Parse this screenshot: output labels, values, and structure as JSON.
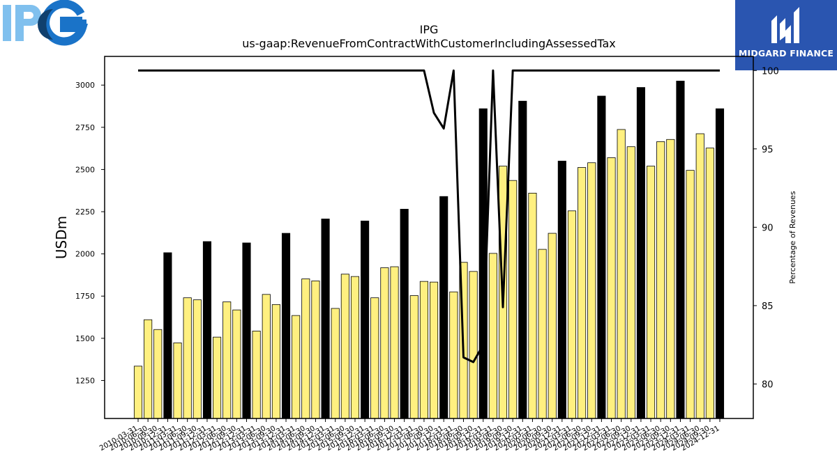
{
  "logos": {
    "left_text": "IPG",
    "right_text": "MIDGARD FINANCE"
  },
  "colors": {
    "bar_regular": "#fff080",
    "bar_highlight": "#000000",
    "line": "#000000",
    "left_logo_light": "#80c0ee",
    "left_logo_dark": "#1a73c8",
    "right_logo_bg": "#2a55b0"
  },
  "chart_data": {
    "type": "bar",
    "title": "IPG",
    "subtitle": "us-gaap:RevenueFromContractWithCustomerIncludingAssessedTax",
    "ylabel": "USDm",
    "y2label": "Percentage of Revenues",
    "ylim": [
      1025,
      3170
    ],
    "y2lim": [
      77.8,
      100.9
    ],
    "yticks": [
      1250,
      1500,
      1750,
      2000,
      2250,
      2500,
      2750,
      3000
    ],
    "y2ticks": [
      80,
      85,
      90,
      95,
      100
    ],
    "categories": [
      "2010-03-31",
      "2010-06-30",
      "2010-09-30",
      "2010-12-31",
      "2011-03-31",
      "2011-06-30",
      "2011-09-30",
      "2011-12-31",
      "2012-03-31",
      "2012-06-30",
      "2012-09-30",
      "2012-12-31",
      "2013-03-31",
      "2013-06-30",
      "2013-09-30",
      "2013-12-31",
      "2014-03-31",
      "2014-06-30",
      "2014-09-30",
      "2014-12-31",
      "2015-03-31",
      "2015-06-30",
      "2015-09-30",
      "2015-12-31",
      "2016-03-31",
      "2016-06-30",
      "2016-09-30",
      "2016-12-31",
      "2017-03-31",
      "2017-06-30",
      "2017-09-30",
      "2017-12-31",
      "2018-03-31",
      "2018-06-30",
      "2018-09-30",
      "2018-12-31",
      "2019-03-31",
      "2019-06-30",
      "2019-09-30",
      "2019-12-31",
      "2020-03-31",
      "2020-06-30",
      "2020-09-30",
      "2020-12-31",
      "2021-03-31",
      "2021-06-30",
      "2021-09-30",
      "2021-12-31",
      "2022-03-31",
      "2022-06-30",
      "2022-09-30",
      "2022-12-31",
      "2023-03-31",
      "2023-06-30",
      "2023-09-30",
      "2023-12-31",
      "2024-03-31",
      "2024-06-30",
      "2024-09-30",
      "2024-12-31"
    ],
    "values": [
      1335,
      1610,
      1552,
      2007,
      1473,
      1740,
      1728,
      2073,
      1507,
      1716,
      1668,
      2065,
      1543,
      1760,
      1700,
      2122,
      1635,
      1852,
      1840,
      2207,
      1677,
      1880,
      1866,
      2195,
      1740,
      1918,
      1924,
      2265,
      1753,
      1837,
      1833,
      2340,
      1775,
      1950,
      1896,
      2860,
      2003,
      2520,
      2435,
      2905,
      2360,
      2027,
      2122,
      2550,
      2255,
      2512,
      2540,
      2935,
      2570,
      2737,
      2635,
      2986,
      2520,
      2665,
      2678,
      3024,
      2495,
      2712,
      2627,
      2860
    ],
    "highlight": [
      false,
      false,
      false,
      true,
      false,
      false,
      false,
      true,
      false,
      false,
      false,
      true,
      false,
      false,
      false,
      true,
      false,
      false,
      false,
      true,
      false,
      false,
      false,
      true,
      false,
      false,
      false,
      true,
      false,
      false,
      false,
      true,
      false,
      false,
      false,
      true,
      false,
      false,
      false,
      true,
      false,
      false,
      false,
      true,
      false,
      false,
      false,
      true,
      false,
      false,
      false,
      true,
      false,
      false,
      false,
      true,
      false,
      false,
      false,
      true
    ],
    "line_series": {
      "values": [
        100,
        100,
        100,
        100,
        100,
        100,
        100,
        100,
        100,
        100,
        100,
        100,
        100,
        100,
        100,
        100,
        100,
        100,
        100,
        100,
        100,
        100,
        100,
        100,
        100,
        100,
        100,
        100,
        100,
        100,
        97.3,
        96.3,
        100,
        81.7,
        81.4,
        82.5,
        100,
        84.9,
        100,
        100,
        100,
        100,
        100,
        100,
        100,
        100,
        100,
        100,
        100,
        100,
        100,
        100,
        100,
        100,
        100,
        100,
        100,
        100,
        100,
        100
      ]
    }
  }
}
